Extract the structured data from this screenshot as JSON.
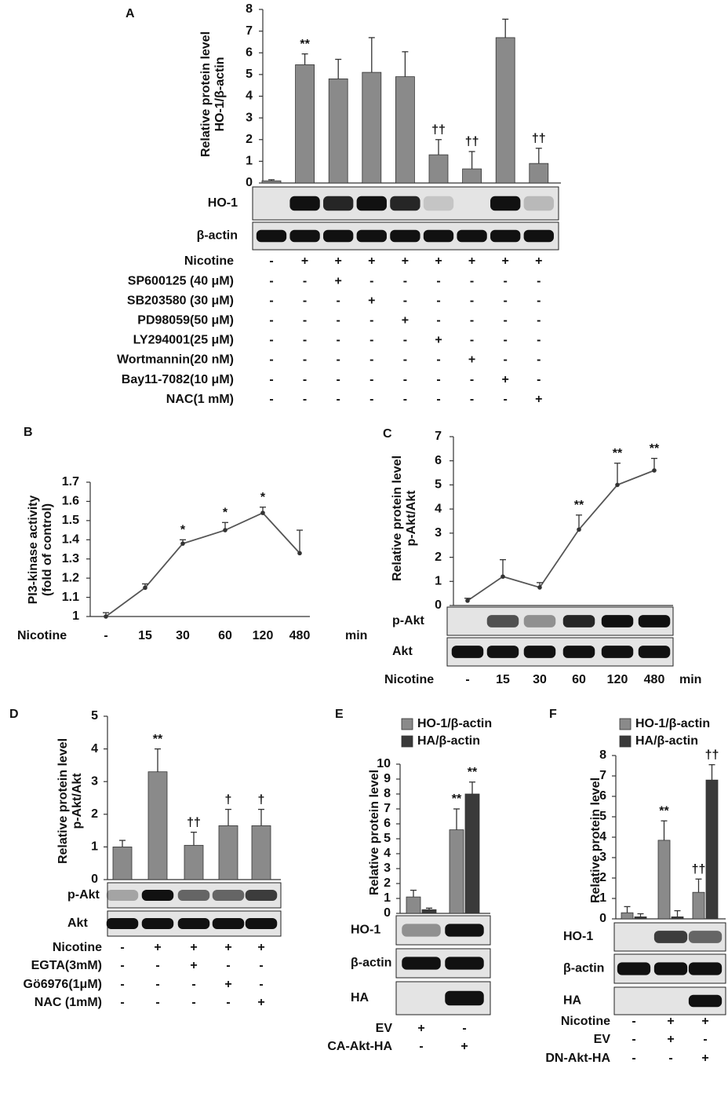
{
  "chart_data": [
    {
      "panel": "A",
      "type": "bar",
      "y_label": [
        "Relative protein level",
        "HO-1/β-actin"
      ],
      "ylim": [
        0,
        8
      ],
      "yticks": [
        0,
        1,
        2,
        3,
        4,
        5,
        6,
        7,
        8
      ],
      "color": "#8a8a8a",
      "values": [
        0.1,
        5.45,
        4.8,
        5.1,
        4.9,
        1.3,
        0.65,
        6.7,
        0.9
      ],
      "errors": [
        0.05,
        0.5,
        0.9,
        1.6,
        1.15,
        0.7,
        0.8,
        0.85,
        0.7
      ],
      "annotations": [
        null,
        "**",
        null,
        null,
        null,
        "††",
        "††",
        null,
        "††"
      ],
      "blots": [
        "HO-1",
        "β-actin"
      ],
      "treatments": [
        {
          "label": "Nicotine",
          "signs": [
            "-",
            "+",
            "+",
            "+",
            "+",
            "+",
            "+",
            "+",
            "+"
          ]
        },
        {
          "label": "SP600125 (40 μM)",
          "signs": [
            "-",
            "-",
            "+",
            "-",
            "-",
            "-",
            "-",
            "-",
            "-"
          ]
        },
        {
          "label": "SB203580 (30 μM)",
          "signs": [
            "-",
            "-",
            "-",
            "+",
            "-",
            "-",
            "-",
            "-",
            "-"
          ]
        },
        {
          "label": "PD98059(50 μM)",
          "signs": [
            "-",
            "-",
            "-",
            "-",
            "+",
            "-",
            "-",
            "-",
            "-"
          ]
        },
        {
          "label": "LY294001(25 μM)",
          "signs": [
            "-",
            "-",
            "-",
            "-",
            "-",
            "+",
            "-",
            "-",
            "-"
          ]
        },
        {
          "label": "Wortmannin(20 nM)",
          "signs": [
            "-",
            "-",
            "-",
            "-",
            "-",
            "-",
            "+",
            "-",
            "-"
          ]
        },
        {
          "label": "Bay11-7082(10 μM)",
          "signs": [
            "-",
            "-",
            "-",
            "-",
            "-",
            "-",
            "-",
            "+",
            "-"
          ]
        },
        {
          "label": "NAC(1 mM)",
          "signs": [
            "-",
            "-",
            "-",
            "-",
            "-",
            "-",
            "-",
            "-",
            "+"
          ]
        }
      ]
    },
    {
      "panel": "B",
      "type": "line",
      "y_label": [
        "PI3-kinase activity",
        "(fold of control)"
      ],
      "ylim": [
        1,
        1.7
      ],
      "yticks": [
        1,
        1.1,
        1.2,
        1.3,
        1.4,
        1.5,
        1.6,
        1.7
      ],
      "color": "#555555",
      "x_label": "Nicotine",
      "x_unit": "min",
      "categories": [
        "-",
        "15",
        "30",
        "60",
        "120",
        "480"
      ],
      "values": [
        1.0,
        1.15,
        1.38,
        1.45,
        1.54,
        1.33
      ],
      "errors": [
        0.02,
        0.02,
        0.02,
        0.04,
        0.03,
        0.12
      ],
      "annotations": [
        null,
        null,
        "*",
        "*",
        "*",
        null
      ]
    },
    {
      "panel": "C",
      "type": "line",
      "y_label": [
        "Relative protein level",
        "p-Akt/Akt"
      ],
      "ylim": [
        0,
        7
      ],
      "yticks": [
        0,
        1,
        2,
        3,
        4,
        5,
        6,
        7
      ],
      "color": "#555555",
      "x_label": "Nicotine",
      "x_unit": "min",
      "categories": [
        "-",
        "15",
        "30",
        "60",
        "120",
        "480"
      ],
      "values": [
        0.2,
        1.2,
        0.75,
        3.15,
        5.0,
        5.6
      ],
      "errors": [
        0.1,
        0.7,
        0.2,
        0.6,
        0.9,
        0.5
      ],
      "annotations": [
        null,
        null,
        null,
        "**",
        "**",
        "**"
      ],
      "blots": [
        "p-Akt",
        "Akt"
      ]
    },
    {
      "panel": "D",
      "type": "bar",
      "y_label": [
        "Relative protein level",
        "p-Akt/Akt"
      ],
      "ylim": [
        0,
        5
      ],
      "yticks": [
        0,
        1,
        2,
        3,
        4,
        5
      ],
      "color": "#8a8a8a",
      "values": [
        1.0,
        3.3,
        1.05,
        1.65,
        1.65
      ],
      "errors": [
        0.2,
        0.7,
        0.4,
        0.5,
        0.5
      ],
      "annotations": [
        null,
        "**",
        "††",
        "†",
        "†"
      ],
      "blots": [
        "p-Akt",
        "Akt"
      ],
      "treatments": [
        {
          "label": "Nicotine",
          "signs": [
            "-",
            "+",
            "+",
            "+",
            "+"
          ]
        },
        {
          "label": "EGTA(3mM)",
          "signs": [
            "-",
            "-",
            "+",
            "-",
            "-"
          ]
        },
        {
          "label": "Gö6976(1μM)",
          "signs": [
            "-",
            "-",
            "-",
            "+",
            "-"
          ]
        },
        {
          "label": "NAC (1mM)",
          "signs": [
            "-",
            "-",
            "-",
            "-",
            "+"
          ]
        }
      ]
    },
    {
      "panel": "E",
      "type": "bar",
      "y_label": [
        "Relative protein level"
      ],
      "ylim": [
        0,
        10
      ],
      "yticks": [
        0,
        1,
        2,
        3,
        4,
        5,
        6,
        7,
        8,
        9,
        10
      ],
      "series": [
        {
          "name": "HO-1/β-actin",
          "color": "#8a8a8a",
          "values": [
            1.1,
            5.6
          ],
          "errors": [
            0.45,
            1.4
          ],
          "annotations": [
            null,
            "**"
          ]
        },
        {
          "name": "HA/β-actin",
          "color": "#3a3a3a",
          "values": [
            0.25,
            8.0
          ],
          "errors": [
            0.1,
            0.8
          ],
          "annotations": [
            null,
            "**"
          ]
        }
      ],
      "blots": [
        "HO-1",
        "β-actin",
        "HA"
      ],
      "treatments": [
        {
          "label": "EV",
          "signs": [
            "+",
            "-"
          ]
        },
        {
          "label": "CA-Akt-HA",
          "signs": [
            "-",
            "+"
          ]
        }
      ]
    },
    {
      "panel": "F",
      "type": "bar",
      "y_label": [
        "Relative protein level"
      ],
      "ylim": [
        0,
        8
      ],
      "yticks": [
        0,
        1,
        2,
        3,
        4,
        5,
        6,
        7,
        8
      ],
      "series": [
        {
          "name": "HO-1/β-actin",
          "color": "#8a8a8a",
          "values": [
            0.3,
            3.85,
            1.3
          ],
          "errors": [
            0.3,
            0.95,
            0.65
          ],
          "annotations": [
            null,
            "**",
            "††"
          ]
        },
        {
          "name": "HA/β-actin",
          "color": "#3a3a3a",
          "values": [
            0.1,
            0.1,
            6.8
          ],
          "errors": [
            0.15,
            0.3,
            0.75
          ],
          "annotations": [
            null,
            null,
            "††"
          ]
        }
      ],
      "blots": [
        "HO-1",
        "β-actin",
        "HA"
      ],
      "treatments": [
        {
          "label": "Nicotine",
          "signs": [
            "-",
            "+",
            "+"
          ]
        },
        {
          "label": "EV",
          "signs": [
            "-",
            "+",
            "-"
          ]
        },
        {
          "label": "DN-Akt-HA",
          "signs": [
            "-",
            "-",
            "+"
          ]
        }
      ]
    }
  ]
}
